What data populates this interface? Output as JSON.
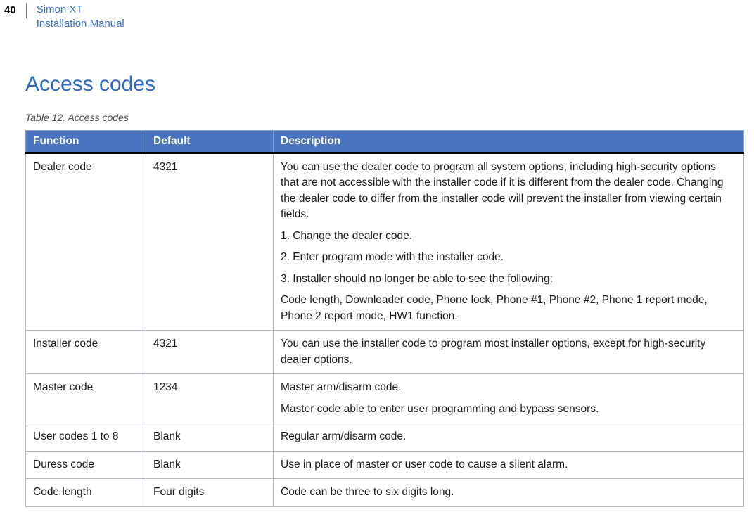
{
  "header": {
    "page_number": "40",
    "line1": "Simon XT",
    "line2": "Installation Manual"
  },
  "section": {
    "title": "Access codes",
    "table_caption": "Table 12.   Access codes"
  },
  "table": {
    "columns": [
      "Function",
      "Default",
      "Description"
    ],
    "rows": [
      {
        "function": "Dealer code",
        "default": "4321",
        "desc": [
          "You can use the dealer code to program all system options, including high-security options that are not accessible with the installer code if it is different from the dealer code.  Changing the dealer code to differ from the installer code will prevent the installer from viewing certain fields.",
          "1. Change the dealer code.",
          "2. Enter program mode with the installer code.",
          "3. Installer should no longer be able to see the following:",
          "Code length, Downloader code, Phone lock, Phone #1, Phone #2, Phone 1 report mode, Phone 2 report mode, HW1 function."
        ]
      },
      {
        "function": "Installer code",
        "default": "4321",
        "desc": [
          "You can use the installer code to program most installer options, except for high-security dealer options."
        ]
      },
      {
        "function": "Master code",
        "default": "1234",
        "desc": [
          "Master arm/disarm code.",
          "Master code able to enter user programming and bypass sensors."
        ]
      },
      {
        "function": "User codes 1 to 8",
        "default": "Blank",
        "desc": [
          "Regular arm/disarm code."
        ]
      },
      {
        "function": "Duress code",
        "default": "Blank",
        "desc": [
          "Use in place of master or user code to cause a silent alarm."
        ]
      },
      {
        "function": "Code length",
        "default": "Four digits",
        "desc": [
          "Code can be three to six digits long."
        ]
      }
    ]
  }
}
